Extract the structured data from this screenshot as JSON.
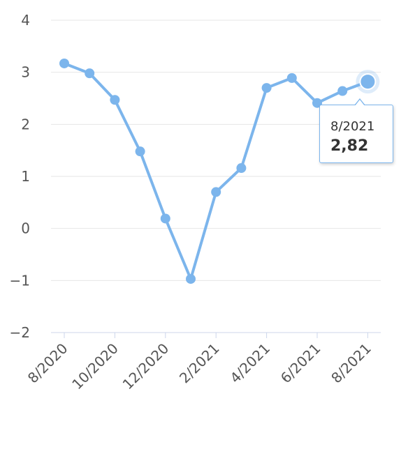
{
  "chart_data": {
    "type": "line",
    "x": [
      "8/2020",
      "9/2020",
      "10/2020",
      "11/2020",
      "12/2020",
      "1/2021",
      "2/2021",
      "3/2021",
      "4/2021",
      "5/2021",
      "6/2021",
      "7/2021",
      "8/2021"
    ],
    "x_tick_labels": [
      "8/2020",
      "10/2020",
      "12/2020",
      "2/2021",
      "4/2021",
      "6/2021",
      "8/2021"
    ],
    "series": [
      {
        "values": [
          3.17,
          2.98,
          2.47,
          1.48,
          0.19,
          -0.97,
          0.7,
          1.16,
          2.7,
          2.89,
          2.41,
          2.64,
          2.82
        ]
      }
    ],
    "ylim": [
      -2,
      4
    ],
    "y_ticks": [
      "4",
      "3",
      "2",
      "1",
      "0",
      "−1",
      "−2"
    ],
    "grid": true,
    "line_color": "#7cb5ec",
    "title": "",
    "xlabel": "",
    "ylabel": ""
  },
  "tooltip": {
    "date": "8/2021",
    "value": "2,82"
  }
}
